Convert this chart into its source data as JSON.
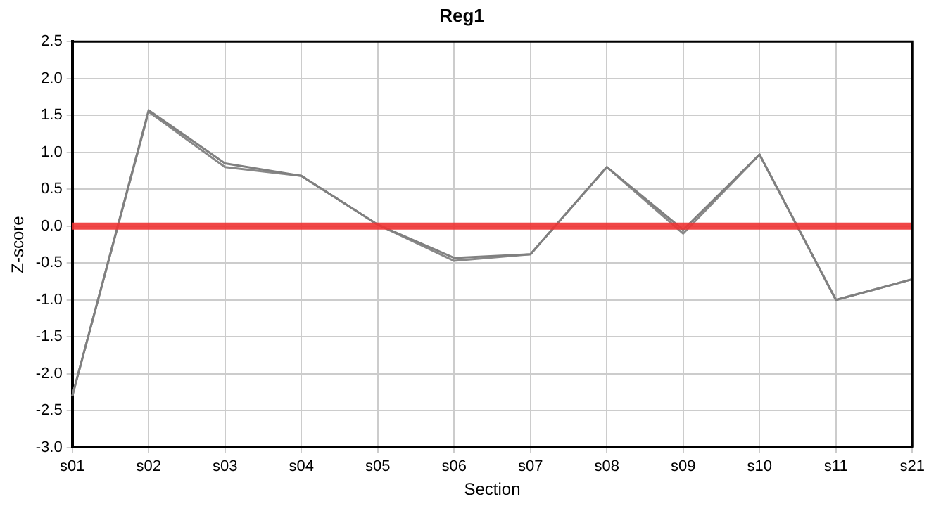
{
  "chart_data": {
    "type": "line",
    "title": "Reg1",
    "xlabel": "Section",
    "ylabel": "Z-score",
    "categories": [
      "s01",
      "s02",
      "s03",
      "s04",
      "s05",
      "s06",
      "s07",
      "s08",
      "s09",
      "s10",
      "s11",
      "s21"
    ],
    "series": [
      {
        "color": "#808080",
        "values": [
          -2.3,
          1.57,
          0.85,
          0.68,
          0.02,
          -0.43,
          -0.38,
          0.8,
          -0.05,
          0.97,
          -1.0,
          -0.72
        ]
      },
      {
        "color": "#888888",
        "values": [
          -2.3,
          1.55,
          0.8,
          0.68,
          0.02,
          -0.47,
          -0.38,
          0.8,
          -0.1,
          0.97,
          -1.0,
          -0.72
        ]
      }
    ],
    "ylim": [
      -3.0,
      2.5
    ],
    "yticks": [
      {
        "value": -3,
        "label": "-3.0"
      },
      {
        "value": -2.5,
        "label": "-2.5"
      },
      {
        "value": -2,
        "label": "-2.0"
      },
      {
        "value": -1.5,
        "label": "-1.5"
      },
      {
        "value": -1,
        "label": "-1.0"
      },
      {
        "value": -0.5,
        "label": "-0.5"
      },
      {
        "value": 0,
        "label": "0.0"
      },
      {
        "value": 0.5,
        "label": "0.5"
      },
      {
        "value": 1,
        "label": "1.0"
      },
      {
        "value": 1.5,
        "label": "1.5"
      },
      {
        "value": 2,
        "label": "2.0"
      },
      {
        "value": 2.5,
        "label": "2.5"
      }
    ],
    "ref_lines": [
      {
        "axis": "y",
        "value": 0,
        "color": "#ee3333"
      }
    ],
    "grid": true,
    "legend": false,
    "marker": "none",
    "line_style": "solid"
  }
}
